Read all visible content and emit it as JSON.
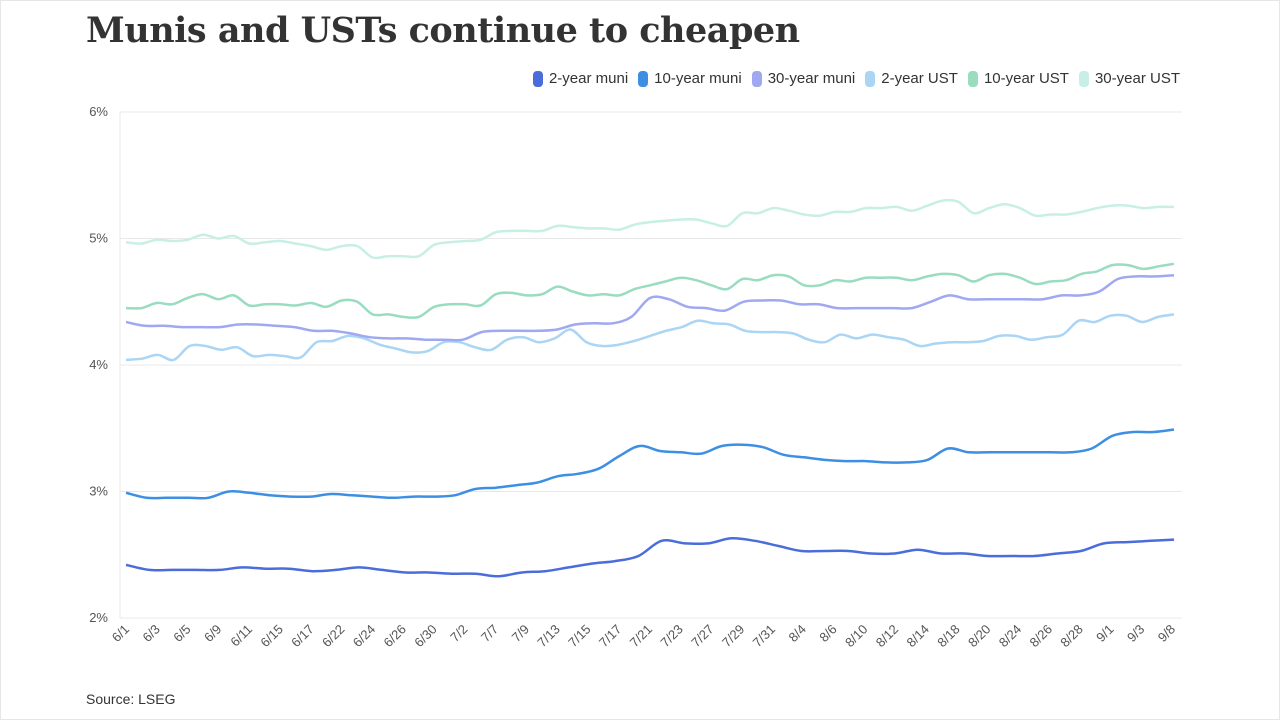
{
  "title": "Munis and USTs continue to cheapen",
  "source": "Source: LSEG",
  "chart_data": {
    "type": "line",
    "title": "Munis and USTs continue to cheapen",
    "xlabel": "",
    "ylabel": "",
    "ylim": [
      2,
      6
    ],
    "yticks": [
      2,
      3,
      4,
      5,
      6
    ],
    "ytick_labels": [
      "2%",
      "3%",
      "4%",
      "5%",
      "6%"
    ],
    "grid": true,
    "legend_position": "top-right",
    "x_tick_labels": [
      "6/1",
      "6/3",
      "6/5",
      "6/9",
      "6/11",
      "6/15",
      "6/17",
      "6/22",
      "6/24",
      "6/26",
      "6/30",
      "7/2",
      "7/7",
      "7/9",
      "7/13",
      "7/15",
      "7/17",
      "7/21",
      "7/23",
      "7/27",
      "7/29",
      "7/31",
      "8/4",
      "8/6",
      "8/10",
      "8/12",
      "8/14",
      "8/18",
      "8/20",
      "8/24",
      "8/26",
      "8/28",
      "9/1",
      "9/3",
      "9/8"
    ],
    "series": [
      {
        "name": "2-year muni",
        "color": "#4a6ddb",
        "values": [
          2.42,
          2.38,
          2.38,
          2.38,
          2.38,
          2.4,
          2.39,
          2.39,
          2.37,
          2.38,
          2.4,
          2.38,
          2.36,
          2.36,
          2.35,
          2.35,
          2.33,
          2.36,
          2.37,
          2.4,
          2.43,
          2.45,
          2.49,
          2.61,
          2.59,
          2.59,
          2.63,
          2.61,
          2.57,
          2.53,
          2.53,
          2.53,
          2.51,
          2.51,
          2.54,
          2.51,
          2.51,
          2.49,
          2.49,
          2.49,
          2.51,
          2.53,
          2.59,
          2.6,
          2.61,
          2.62
        ]
      },
      {
        "name": "10-year muni",
        "color": "#3d8fe3",
        "values": [
          2.99,
          2.95,
          2.95,
          2.95,
          2.95,
          3.0,
          2.99,
          2.97,
          2.96,
          2.96,
          2.98,
          2.97,
          2.96,
          2.95,
          2.96,
          2.96,
          2.97,
          3.02,
          3.03,
          3.05,
          3.07,
          3.12,
          3.14,
          3.18,
          3.28,
          3.36,
          3.32,
          3.31,
          3.3,
          3.36,
          3.37,
          3.35,
          3.29,
          3.27,
          3.25,
          3.24,
          3.24,
          3.23,
          3.23,
          3.25,
          3.34,
          3.31,
          3.31,
          3.31,
          3.31,
          3.31,
          3.31,
          3.34,
          3.44,
          3.47,
          3.47,
          3.49
        ]
      },
      {
        "name": "30-year muni",
        "color": "#9fa8f0",
        "values": [
          4.34,
          4.31,
          4.31,
          4.3,
          4.3,
          4.3,
          4.32,
          4.32,
          4.31,
          4.3,
          4.27,
          4.27,
          4.25,
          4.22,
          4.21,
          4.21,
          4.2,
          4.2,
          4.2,
          4.26,
          4.27,
          4.27,
          4.27,
          4.28,
          4.32,
          4.33,
          4.33,
          4.38,
          4.53,
          4.52,
          4.46,
          4.45,
          4.43,
          4.5,
          4.51,
          4.51,
          4.48,
          4.48,
          4.45,
          4.45,
          4.45,
          4.45,
          4.45,
          4.5,
          4.55,
          4.52,
          4.52,
          4.52,
          4.52,
          4.52,
          4.55,
          4.55,
          4.58,
          4.68,
          4.7,
          4.7,
          4.71
        ]
      },
      {
        "name": "2-year UST",
        "color": "#aad5f5",
        "values": [
          4.04,
          4.05,
          4.08,
          4.04,
          4.15,
          4.15,
          4.12,
          4.14,
          4.07,
          4.08,
          4.07,
          4.06,
          4.18,
          4.19,
          4.23,
          4.21,
          4.16,
          4.13,
          4.1,
          4.11,
          4.18,
          4.18,
          4.14,
          4.12,
          4.2,
          4.22,
          4.18,
          4.21,
          4.28,
          4.18,
          4.15,
          4.16,
          4.19,
          4.23,
          4.27,
          4.3,
          4.35,
          4.33,
          4.32,
          4.27,
          4.26,
          4.26,
          4.25,
          4.2,
          4.18,
          4.24,
          4.21,
          4.24,
          4.22,
          4.2,
          4.15,
          4.17,
          4.18,
          4.18,
          4.19,
          4.23,
          4.23,
          4.2,
          4.22,
          4.24,
          4.35,
          4.34,
          4.39,
          4.39,
          4.34,
          4.38,
          4.4
        ]
      },
      {
        "name": "10-year UST",
        "color": "#99dcc0",
        "values": [
          4.45,
          4.45,
          4.49,
          4.48,
          4.53,
          4.56,
          4.52,
          4.55,
          4.47,
          4.48,
          4.48,
          4.47,
          4.49,
          4.46,
          4.51,
          4.5,
          4.4,
          4.4,
          4.38,
          4.38,
          4.46,
          4.48,
          4.48,
          4.47,
          4.56,
          4.57,
          4.55,
          4.56,
          4.62,
          4.58,
          4.55,
          4.56,
          4.55,
          4.6,
          4.63,
          4.66,
          4.69,
          4.67,
          4.63,
          4.6,
          4.68,
          4.67,
          4.71,
          4.7,
          4.63,
          4.63,
          4.67,
          4.66,
          4.69,
          4.69,
          4.69,
          4.67,
          4.7,
          4.72,
          4.71,
          4.66,
          4.71,
          4.72,
          4.69,
          4.64,
          4.66,
          4.67,
          4.72,
          4.74,
          4.79,
          4.79,
          4.76,
          4.78,
          4.8
        ]
      },
      {
        "name": "30-year UST",
        "color": "#c8efe6",
        "values": [
          4.97,
          4.96,
          4.99,
          4.98,
          4.99,
          5.03,
          5.0,
          5.02,
          4.96,
          4.97,
          4.98,
          4.96,
          4.94,
          4.91,
          4.94,
          4.94,
          4.85,
          4.86,
          4.86,
          4.86,
          4.95,
          4.97,
          4.98,
          4.99,
          5.05,
          5.06,
          5.06,
          5.06,
          5.1,
          5.09,
          5.08,
          5.08,
          5.07,
          5.11,
          5.13,
          5.14,
          5.15,
          5.15,
          5.12,
          5.1,
          5.2,
          5.2,
          5.24,
          5.22,
          5.19,
          5.18,
          5.21,
          5.21,
          5.24,
          5.24,
          5.25,
          5.22,
          5.26,
          5.3,
          5.29,
          5.2,
          5.24,
          5.27,
          5.24,
          5.18,
          5.19,
          5.19,
          5.21,
          5.24,
          5.26,
          5.26,
          5.24,
          5.25,
          5.25
        ]
      }
    ]
  }
}
